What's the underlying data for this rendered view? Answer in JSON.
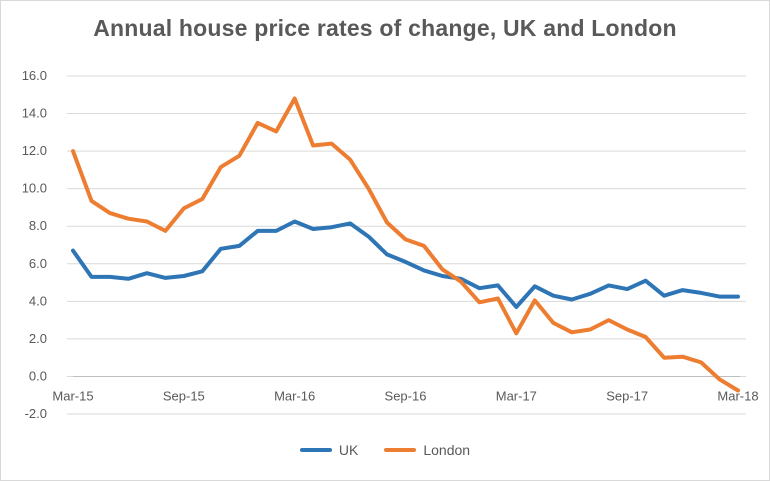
{
  "chart_data": {
    "type": "line",
    "title": "Annual house price rates of change, UK and London",
    "xlabel": "",
    "ylabel": "",
    "ylim": [
      -2.0,
      16.0
    ],
    "y_ticks": [
      "-2.0",
      "0.0",
      "2.0",
      "4.0",
      "6.0",
      "8.0",
      "10.0",
      "12.0",
      "14.0",
      "16.0"
    ],
    "x_tick_labels": [
      "Mar-15",
      "Sep-15",
      "Mar-16",
      "Sep-16",
      "Mar-17",
      "Sep-17",
      "Mar-18"
    ],
    "x": [
      "Mar-15",
      "Apr-15",
      "May-15",
      "Jun-15",
      "Jul-15",
      "Aug-15",
      "Sep-15",
      "Oct-15",
      "Nov-15",
      "Dec-15",
      "Jan-16",
      "Feb-16",
      "Mar-16",
      "Apr-16",
      "May-16",
      "Jun-16",
      "Jul-16",
      "Aug-16",
      "Sep-16",
      "Oct-16",
      "Nov-16",
      "Dec-16",
      "Jan-17",
      "Feb-17",
      "Mar-17",
      "Apr-17",
      "May-17",
      "Jun-17",
      "Jul-17",
      "Aug-17",
      "Sep-17",
      "Oct-17",
      "Nov-17",
      "Dec-17",
      "Jan-18",
      "Feb-18",
      "Mar-18"
    ],
    "grid": true,
    "legend_position": "bottom",
    "series": [
      {
        "name": "UK",
        "color": "#2e75b6",
        "values": [
          6.7,
          5.3,
          5.3,
          5.2,
          5.5,
          5.25,
          5.35,
          5.6,
          6.8,
          6.95,
          7.75,
          7.75,
          8.25,
          7.85,
          7.95,
          8.15,
          7.45,
          6.5,
          6.1,
          5.65,
          5.35,
          5.2,
          4.7,
          4.85,
          3.7,
          4.8,
          4.3,
          4.1,
          4.4,
          4.85,
          4.65,
          5.1,
          4.3,
          4.6,
          4.45,
          4.25,
          4.25
        ]
      },
      {
        "name": "London",
        "color": "#ed7d31",
        "values": [
          12.0,
          9.35,
          8.7,
          8.4,
          8.25,
          7.75,
          8.95,
          9.45,
          11.15,
          11.75,
          13.5,
          13.05,
          14.8,
          12.3,
          12.4,
          11.55,
          10.0,
          8.2,
          7.3,
          6.95,
          5.7,
          5.05,
          3.95,
          4.15,
          2.3,
          4.05,
          2.85,
          2.35,
          2.5,
          3.0,
          2.5,
          2.1,
          1.0,
          1.05,
          0.75,
          -0.15,
          -0.75
        ]
      }
    ]
  }
}
